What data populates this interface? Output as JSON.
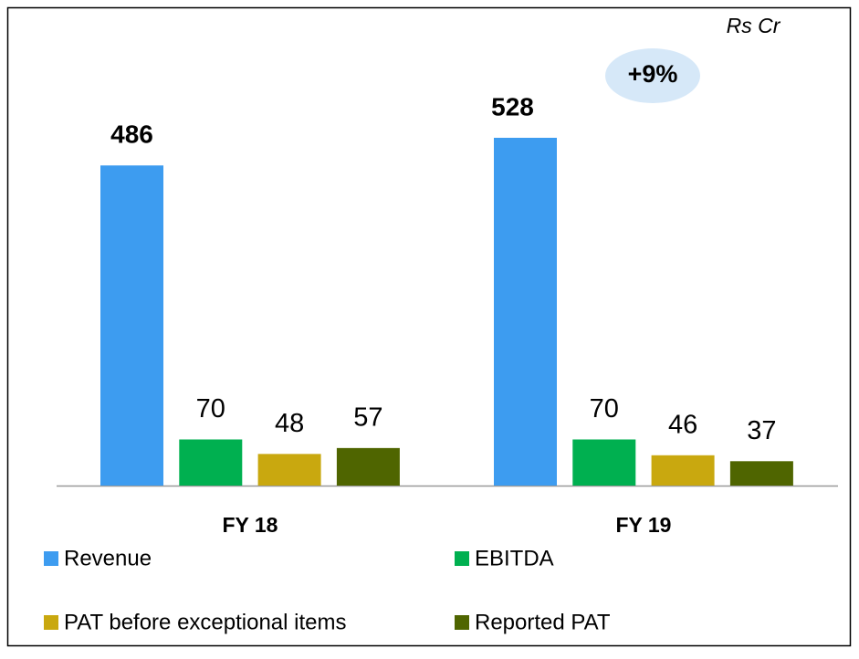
{
  "chart_data": {
    "type": "bar",
    "unit": "Rs Cr",
    "annotation": "+9%",
    "categories": [
      "FY 18",
      "FY 19"
    ],
    "series": [
      {
        "name": "Revenue",
        "color": "#3d9cf0",
        "values": [
          486,
          528
        ]
      },
      {
        "name": "EBITDA",
        "color": "#00b050",
        "values": [
          70,
          70
        ]
      },
      {
        "name": "PAT before exceptional items",
        "color": "#c9a80f",
        "values": [
          48,
          46
        ]
      },
      {
        "name": "Reported PAT",
        "color": "#4f6500",
        "values": [
          57,
          37
        ]
      }
    ],
    "ylim": [
      0,
      600
    ],
    "legend": "bottom"
  }
}
